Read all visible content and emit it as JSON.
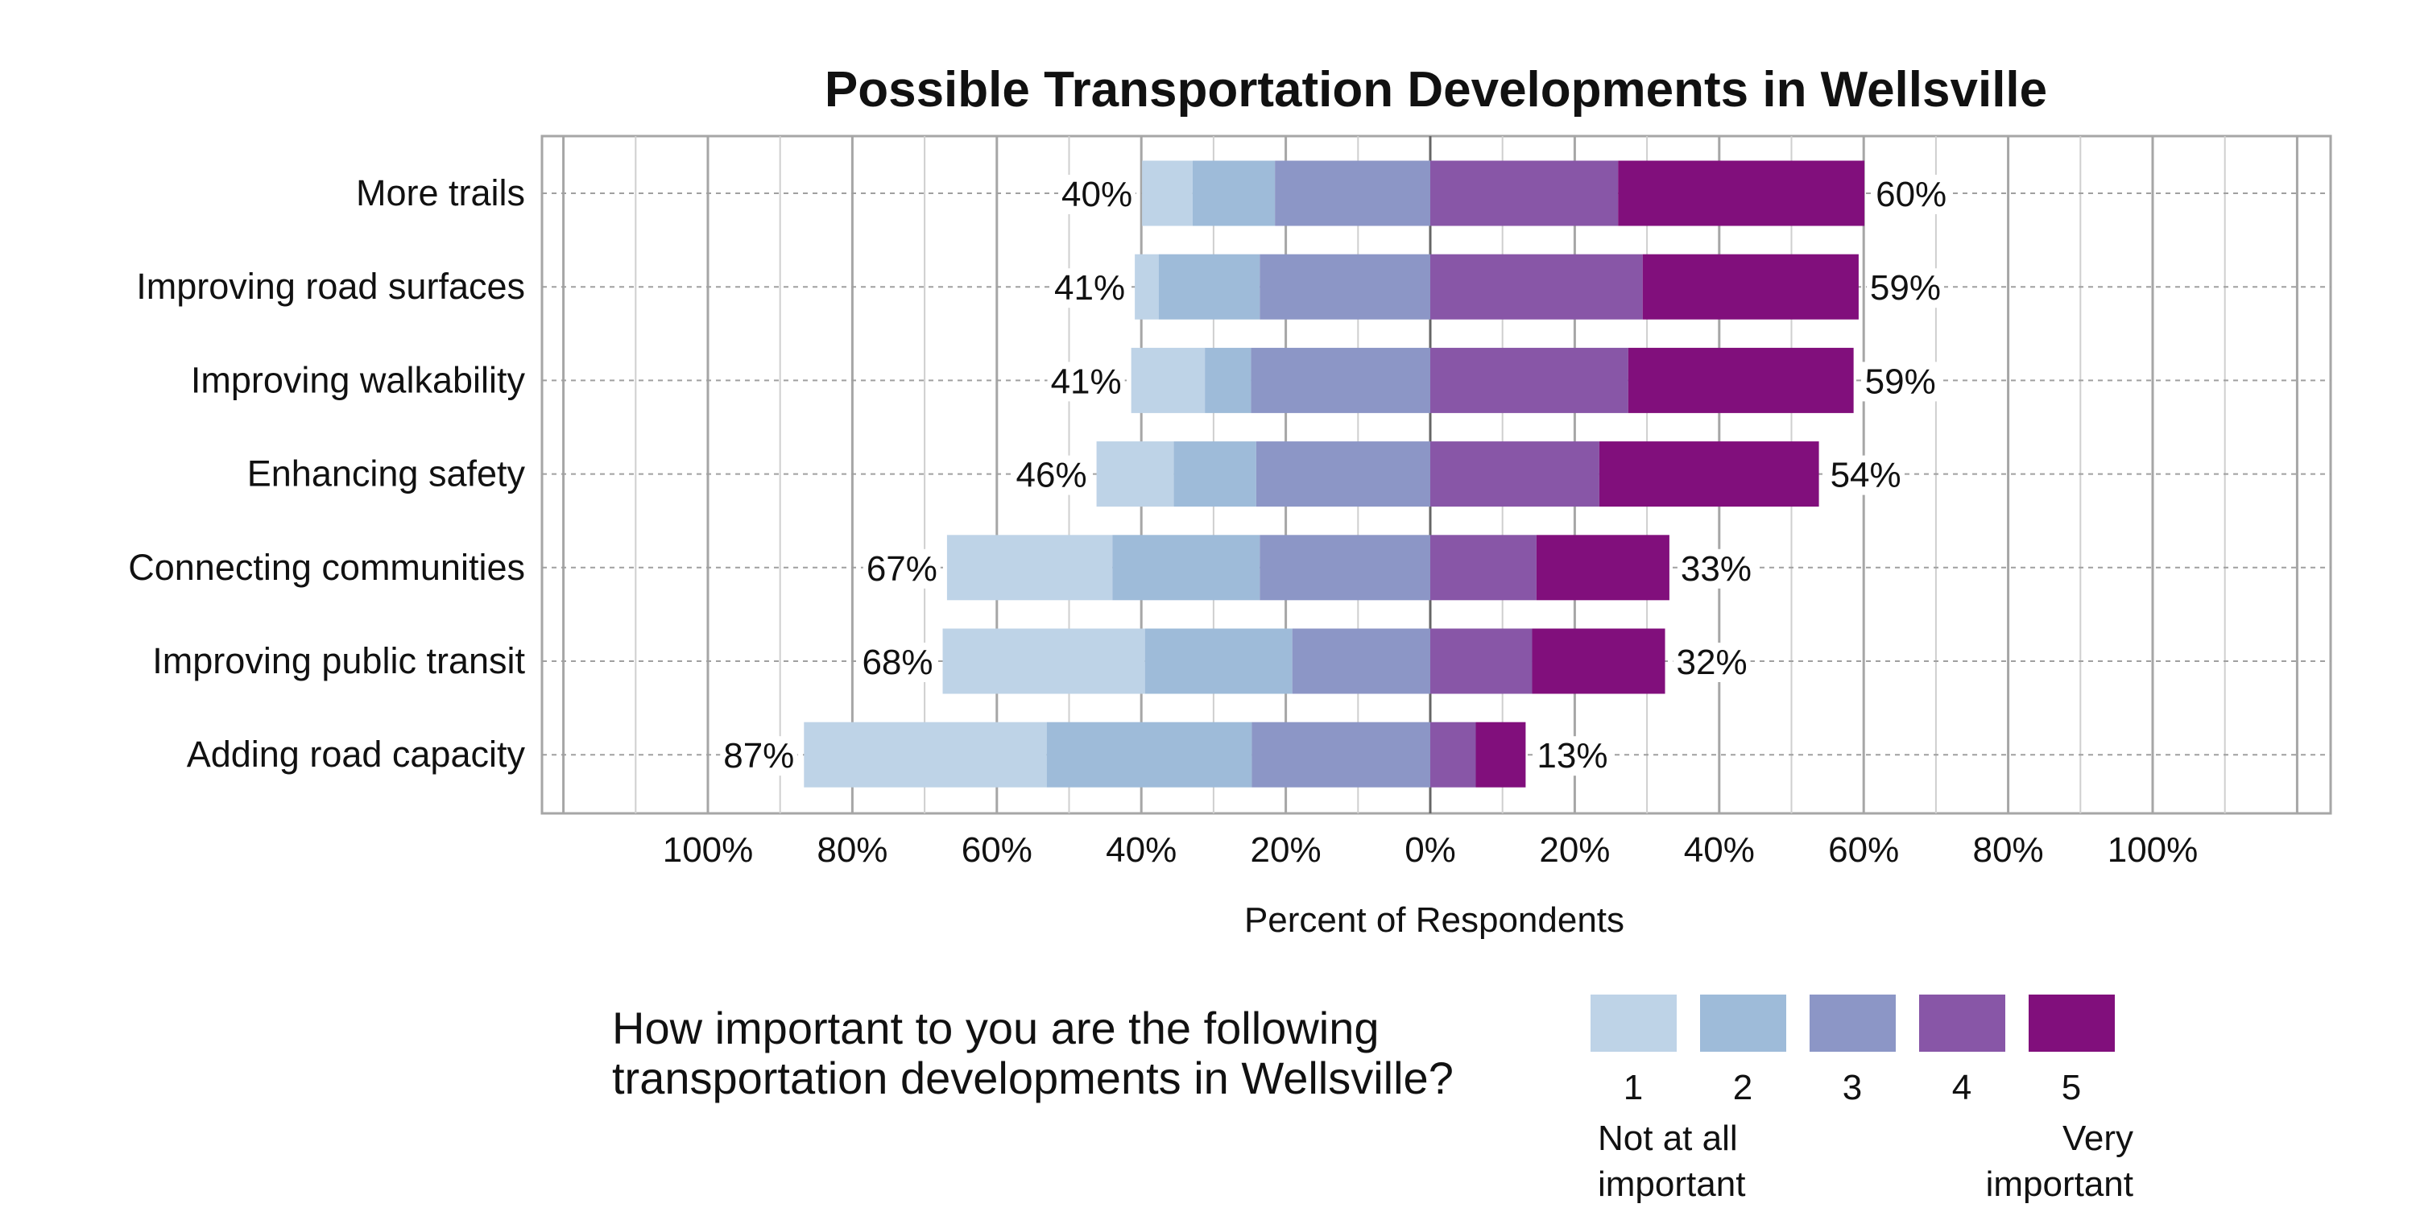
{
  "chart_data": {
    "type": "bar",
    "subtype": "diverging-stacked-horizontal",
    "title": "Possible Transportation Developments in Wellsville",
    "xlabel": "Percent of Respondents",
    "ylabel": "",
    "xlim": [
      -100,
      100
    ],
    "x_ticks": [
      "100%",
      "80%",
      "60%",
      "40%",
      "20%",
      "0%",
      "20%",
      "40%",
      "60%",
      "80%",
      "100%"
    ],
    "grid": true,
    "categories": [
      "More trails",
      "Improving road surfaces",
      "Improving walkability",
      "Enhancing safety",
      "Connecting communities",
      "Improving public transit",
      "Adding road capacity"
    ],
    "series": [
      {
        "name": "1",
        "color": "#bed3e7",
        "values": [
          7.0,
          3.3,
          10.2,
          10.7,
          22.9,
          28.0,
          33.6
        ]
      },
      {
        "name": "2",
        "color": "#9ebbd9",
        "values": [
          11.4,
          14.0,
          6.4,
          11.4,
          20.4,
          20.4,
          28.4
        ]
      },
      {
        "name": "3",
        "color": "#8c96c6",
        "values": [
          21.5,
          23.6,
          24.8,
          24.1,
          23.6,
          19.1,
          24.7
        ]
      },
      {
        "name": "4",
        "color": "#8856a7",
        "values": [
          26.0,
          29.4,
          27.4,
          23.4,
          14.7,
          14.1,
          6.3
        ]
      },
      {
        "name": "5",
        "color": "#810f7c",
        "values": [
          34.1,
          29.9,
          31.2,
          30.4,
          18.4,
          18.4,
          6.9
        ]
      }
    ],
    "negative_series": [
      "1",
      "2",
      "3"
    ],
    "left_labels": [
      "40%",
      "41%",
      "41%",
      "46%",
      "67%",
      "68%",
      "87%"
    ],
    "right_labels": [
      "60%",
      "59%",
      "59%",
      "54%",
      "33%",
      "32%",
      "13%"
    ],
    "legend": {
      "question_line1": "How important to you are the following",
      "question_line2": "transportation developments in Wellsville?",
      "keys": [
        "1",
        "2",
        "3",
        "4",
        "5"
      ],
      "low_label_line1": "Not at all",
      "low_label_line2": "important",
      "high_label_line1": "Very",
      "high_label_line2": "important",
      "placement": "bottom"
    }
  }
}
